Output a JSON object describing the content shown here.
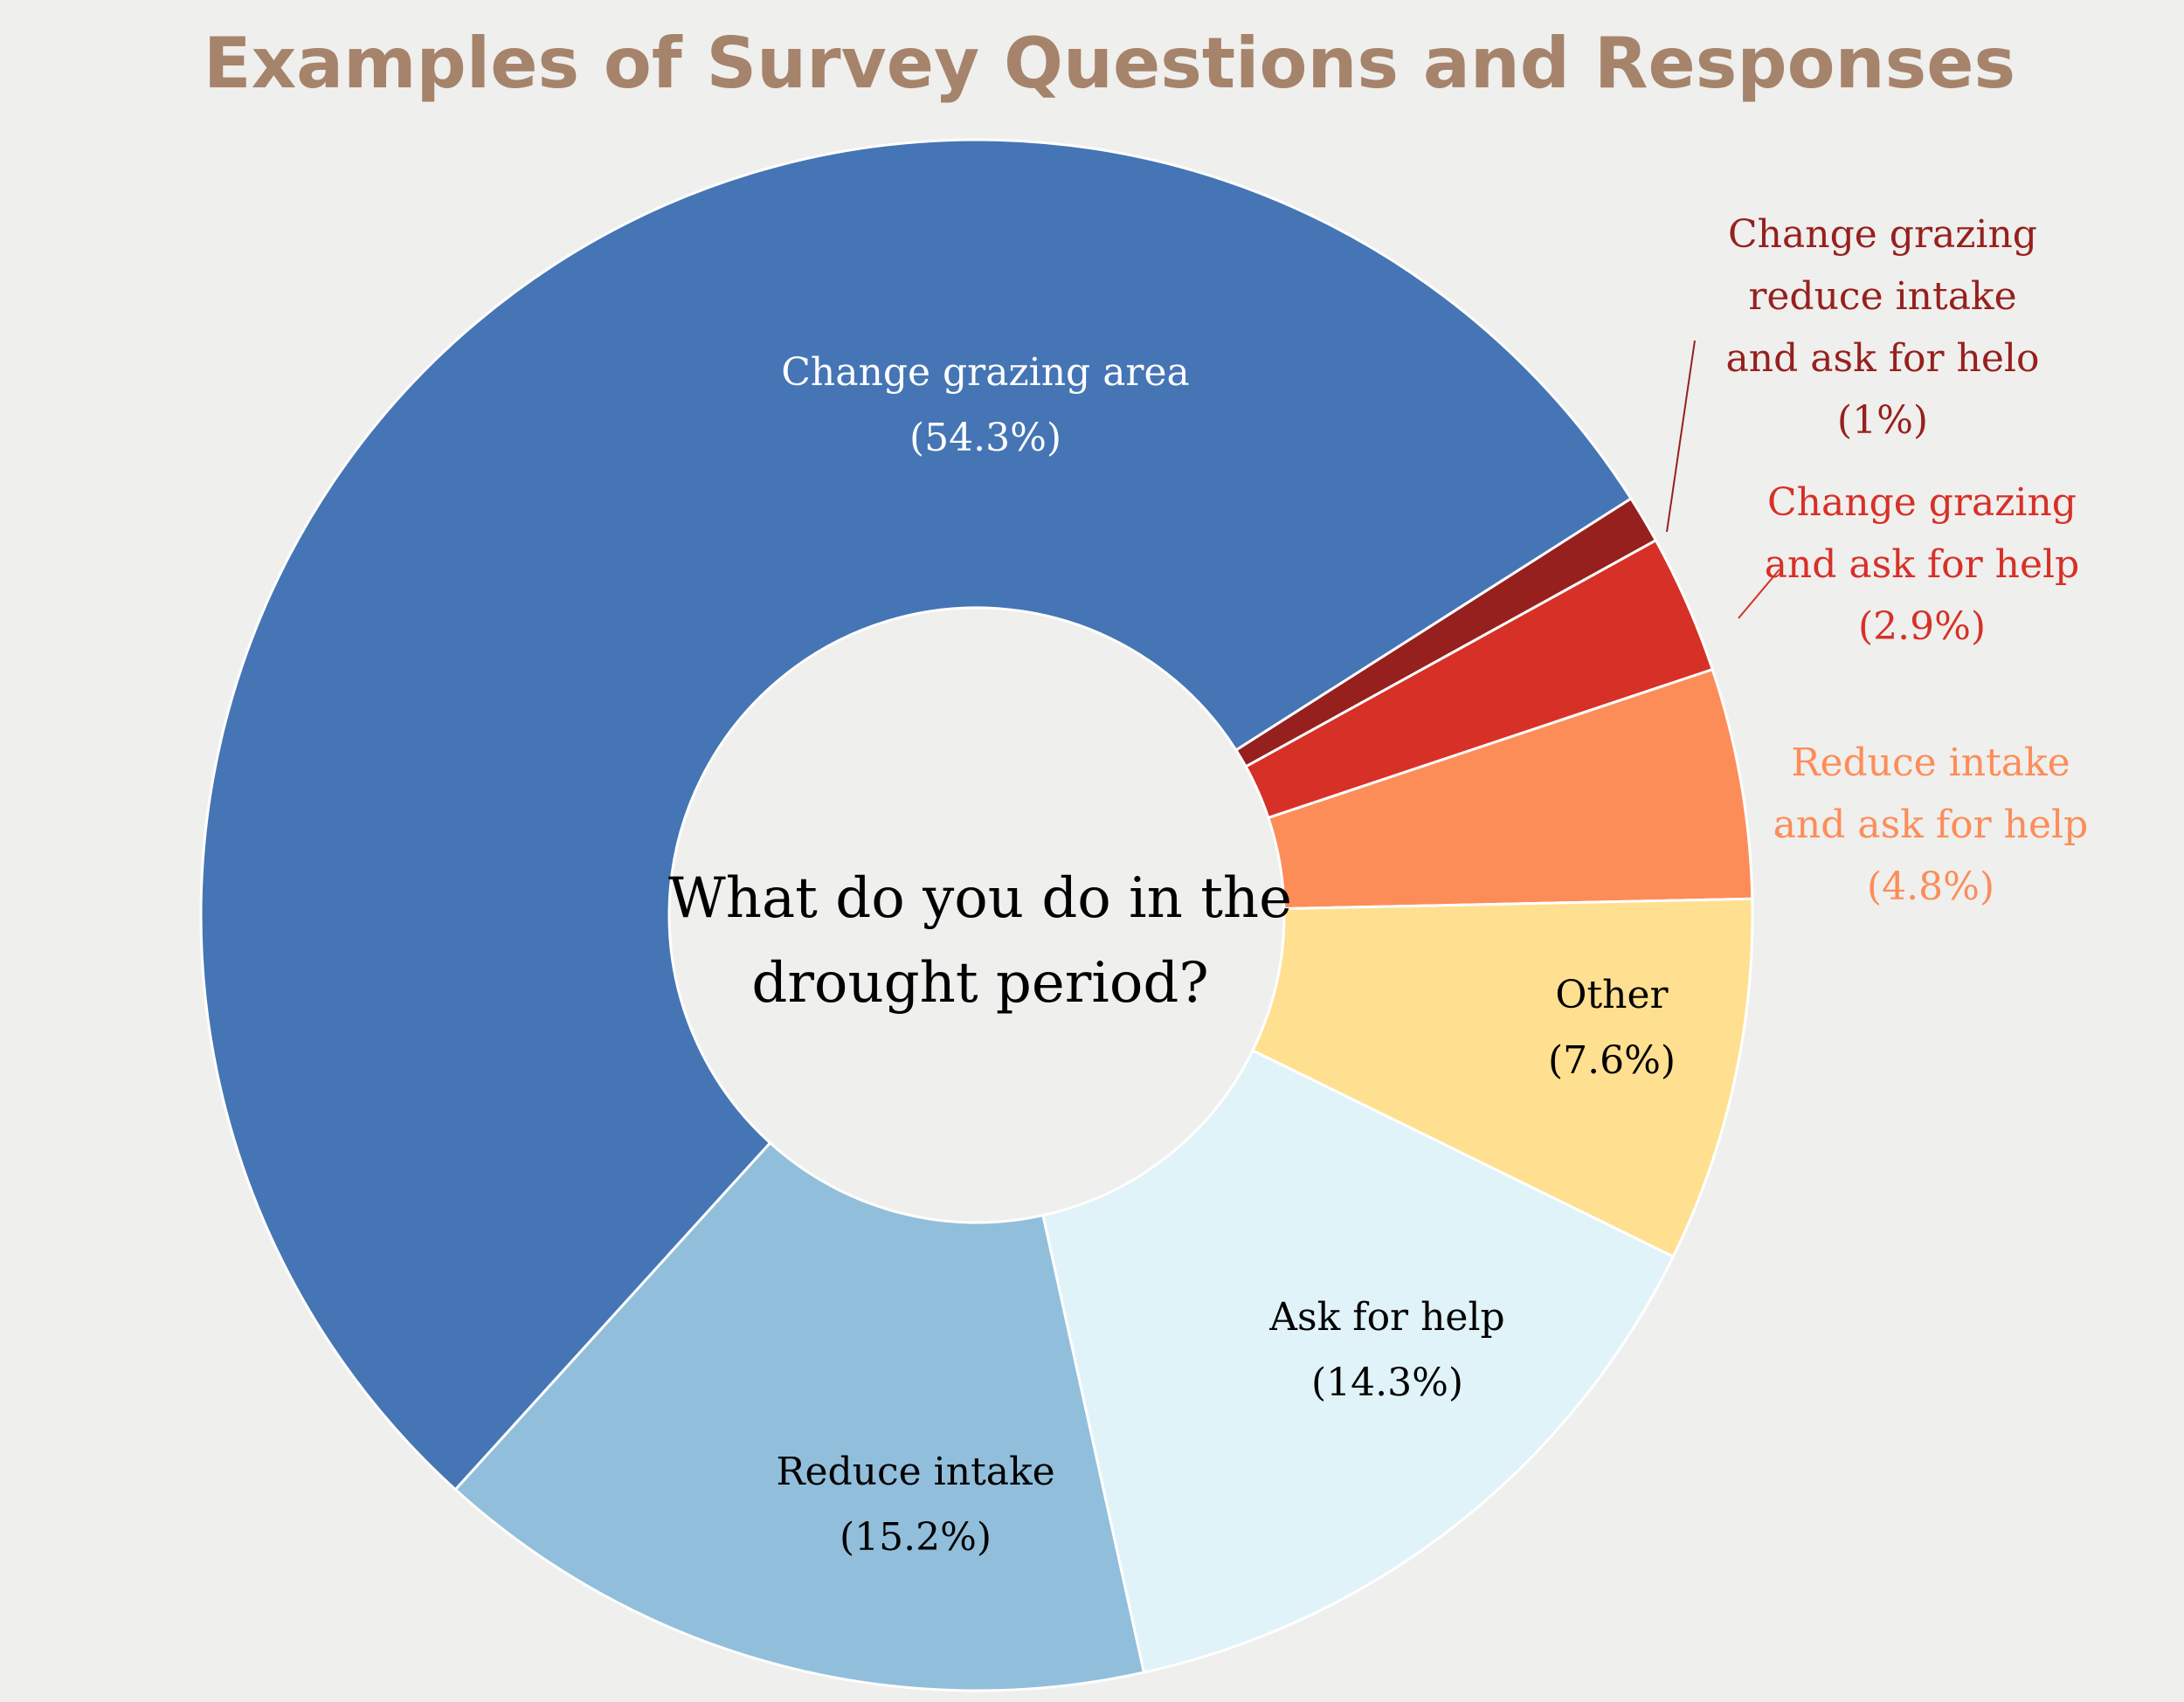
{
  "chart_data": {
    "type": "pie",
    "variant": "donut",
    "title": "Examples of Survey Questions and Responses",
    "center_text": [
      "What do you do in the",
      "drought period?"
    ],
    "start": "top, clockwise from 'Change grazing reduce intake and ask for helo'",
    "slices": [
      {
        "name": "Change grazing reduce intake and ask for helo",
        "value": 1.0,
        "label_lines": [
          "Change grazing",
          "reduce intake",
          "and ask for helo",
          "(1%)"
        ],
        "color": "#96201d",
        "label_color": "#96201d",
        "label_outside": true
      },
      {
        "name": "Change grazing and ask for help",
        "value": 2.9,
        "label_lines": [
          "Change grazing",
          "and ask for help",
          "(2.9%)"
        ],
        "color": "#d73027",
        "label_color": "#d73027",
        "label_outside": true
      },
      {
        "name": "Reduce intake and ask for help",
        "value": 4.8,
        "label_lines": [
          "Reduce intake",
          "and ask for help",
          "(4.8%)"
        ],
        "color": "#fc8d59",
        "label_color": "#fc8d59",
        "label_outside": true
      },
      {
        "name": "Other",
        "value": 7.6,
        "label_lines": [
          "Other",
          "(7.6%)"
        ],
        "color": "#fee090",
        "label_color": "#000000",
        "label_outside": false
      },
      {
        "name": "Ask for help",
        "value": 14.3,
        "label_lines": [
          "Ask for help",
          "(14.3%)"
        ],
        "color": "#e0f3f8",
        "label_color": "#000000",
        "label_outside": false
      },
      {
        "name": "Reduce intake",
        "value": 15.2,
        "label_lines": [
          "Reduce intake",
          "(15.2%)"
        ],
        "color": "#91bfdb",
        "label_color": "#000000",
        "label_outside": false
      },
      {
        "name": "Change grazing area",
        "value": 54.3,
        "label_lines": [
          "Change grazing area",
          "(54.3%)"
        ],
        "color": "#4575b4",
        "label_color": "#ffffff",
        "label_outside": false
      }
    ]
  }
}
